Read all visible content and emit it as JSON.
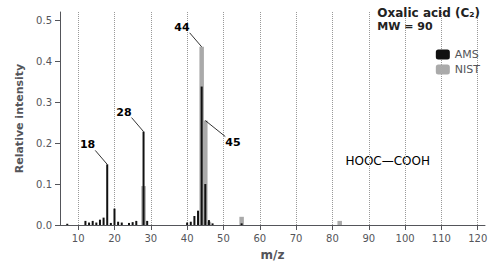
{
  "chart_data": {
    "type": "bar",
    "title": "Oxalic acid (C₂)",
    "subtitle": "MW = 90",
    "xlabel": "m/z",
    "ylabel": "Relative intensity",
    "xlim": [
      5,
      122
    ],
    "ylim": [
      0,
      0.52
    ],
    "xticks": [
      10,
      20,
      30,
      40,
      50,
      60,
      70,
      80,
      90,
      100,
      110,
      120
    ],
    "yticks": [
      {
        "value": 0.0,
        "label": "0.0"
      },
      0.1,
      0.2,
      0.3,
      0.4,
      0.5
    ],
    "grid": "x",
    "legend": "upper right",
    "series": [
      {
        "name": "AMS",
        "color": "#111111",
        "x": [
          7,
          12,
          13,
          14,
          15,
          16,
          17,
          18,
          19,
          20,
          21,
          22,
          24,
          25,
          26,
          28,
          29,
          40,
          41,
          42,
          43,
          44,
          45,
          46,
          47,
          55
        ],
        "values": [
          0.003,
          0.01,
          0.006,
          0.01,
          0.006,
          0.013,
          0.018,
          0.148,
          0.005,
          0.04,
          0.008,
          0.006,
          0.005,
          0.007,
          0.01,
          0.228,
          0.01,
          0.006,
          0.008,
          0.022,
          0.035,
          0.338,
          0.1,
          0.012,
          0.004,
          0.004
        ]
      },
      {
        "name": "NIST",
        "color": "#aaaaaa",
        "x": [
          28,
          44,
          45,
          46,
          55,
          82
        ],
        "values": [
          0.095,
          0.435,
          0.255,
          0.008,
          0.02,
          0.01
        ]
      }
    ],
    "annotations": [
      {
        "text": "18",
        "series": "AMS",
        "x": 18
      },
      {
        "text": "28",
        "series": "AMS",
        "x": 28
      },
      {
        "text": "44",
        "series": "NIST",
        "x": 44
      },
      {
        "text": "45",
        "series": "NIST",
        "x": 45
      },
      {
        "text": "HOOC—COOH"
      }
    ]
  }
}
